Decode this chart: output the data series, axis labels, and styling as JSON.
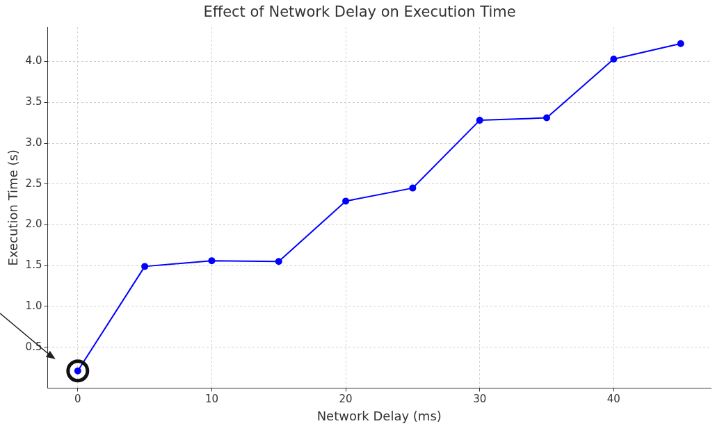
{
  "chart_data": {
    "type": "line",
    "title": "Effect of Network Delay on Execution Time",
    "xlabel": "Network Delay (ms)",
    "ylabel": "Execution Time (s)",
    "x": [
      0,
      5,
      10,
      15,
      20,
      25,
      30,
      35,
      40,
      45
    ],
    "series": [
      {
        "color": "#0000ff",
        "values": [
          0.21,
          1.49,
          1.56,
          1.55,
          2.29,
          2.45,
          3.28,
          3.31,
          4.03,
          4.22
        ]
      }
    ],
    "xlim": [
      -2.25,
      47.25
    ],
    "xticks": [
      0,
      10,
      20,
      30,
      40
    ],
    "ylim": [
      0.0,
      4.42
    ],
    "yticks": [
      0.5,
      {
        "value": 1,
        "label": "1.0"
      },
      1.5,
      {
        "value": 2,
        "label": "2.0"
      },
      2.5,
      {
        "value": 3,
        "label": "3.0"
      },
      3.5,
      {
        "value": 4,
        "label": "4.0"
      }
    ],
    "grid": true,
    "marker": "circle",
    "line_style": "solid",
    "legend": false
  }
}
